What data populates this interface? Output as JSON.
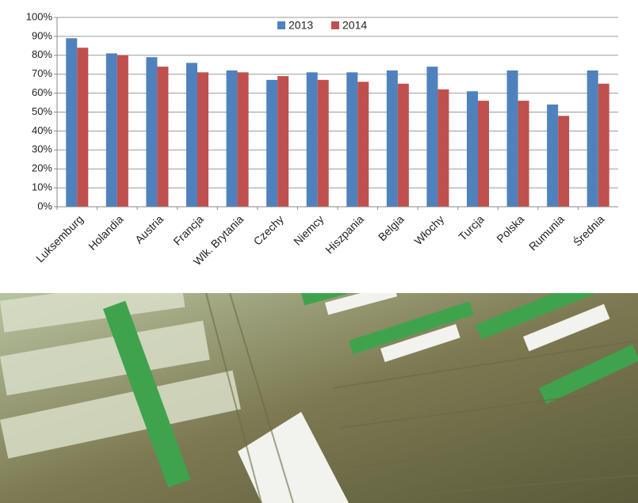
{
  "chart_data": {
    "type": "bar",
    "categories": [
      "Luksemburg",
      "Holandia",
      "Austria",
      "Francja",
      "Wlk. Brytania",
      "Czechy",
      "Niemcy",
      "Hiszpania",
      "Belgia",
      "Włochy",
      "Turcja",
      "Polska",
      "Rumunia",
      "Średnia"
    ],
    "series": [
      {
        "name": "2013",
        "color": "#4f81bd",
        "values": [
          89,
          81,
          79,
          76,
          72,
          67,
          71,
          71,
          72,
          74,
          61,
          72,
          54,
          72
        ]
      },
      {
        "name": "2014",
        "color": "#c0504d",
        "values": [
          84,
          80,
          74,
          71,
          71,
          69,
          67,
          66,
          65,
          62,
          56,
          56,
          48,
          65
        ]
      }
    ],
    "ylim": [
      0,
      100
    ],
    "yticks": [
      {
        "value": 0,
        "label": "0%"
      },
      {
        "value": 10,
        "label": "10%"
      },
      {
        "value": 20,
        "label": "20%"
      },
      {
        "value": 30,
        "label": "30%"
      },
      {
        "value": 40,
        "label": "40%"
      },
      {
        "value": 50,
        "label": "50%"
      },
      {
        "value": 60,
        "label": "60%"
      },
      {
        "value": 70,
        "label": "70%"
      },
      {
        "value": 80,
        "label": "80%"
      },
      {
        "value": 90,
        "label": "90%"
      },
      {
        "value": 100,
        "label": "100%"
      }
    ],
    "grid": true,
    "legend": "top"
  }
}
